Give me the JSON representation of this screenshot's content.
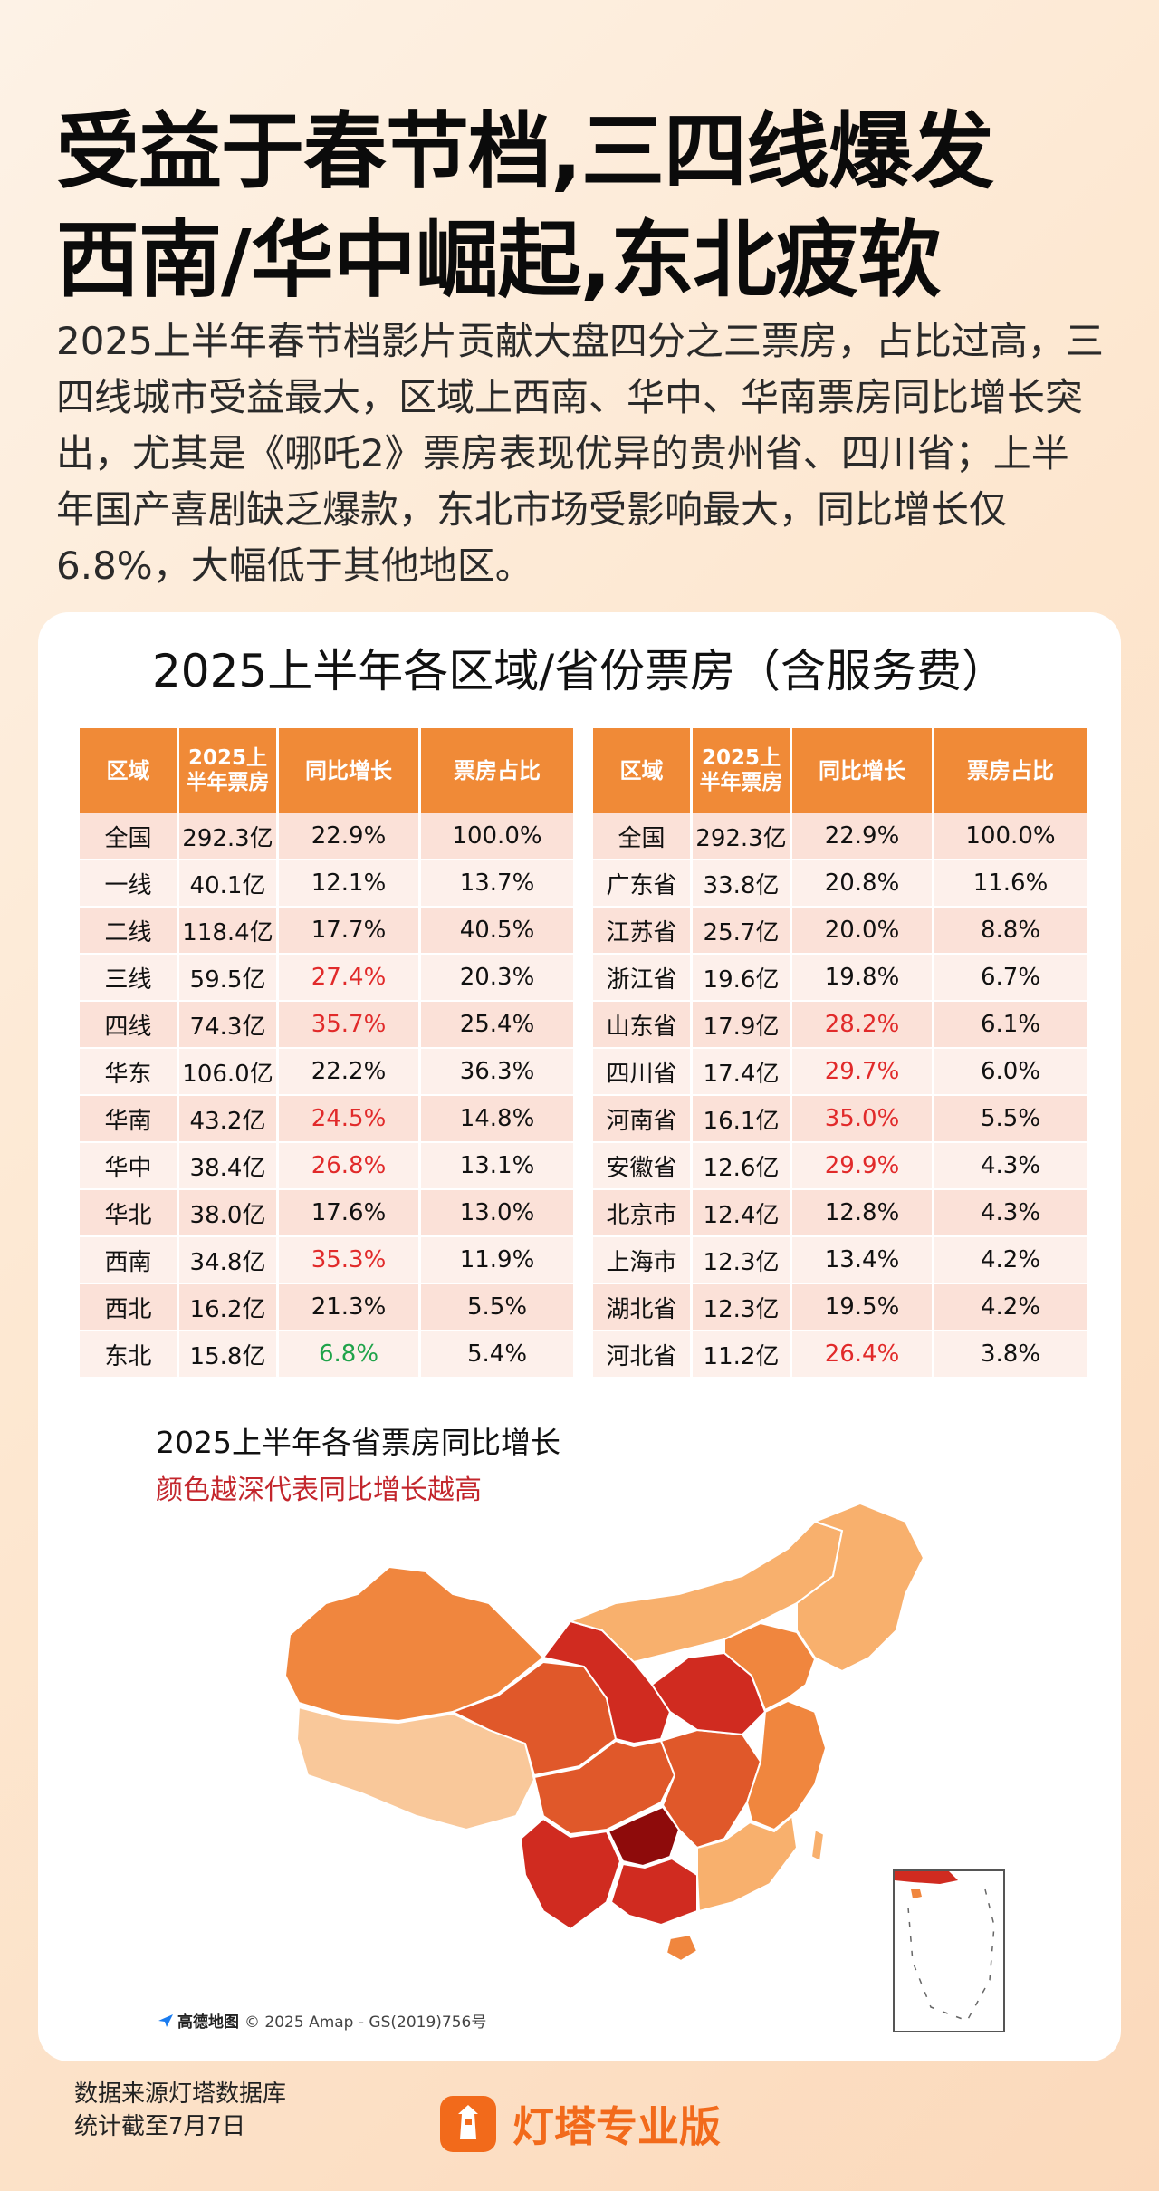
{
  "headline": {
    "line1": "受益于春节档,三四线爆发",
    "line2": "西南/华中崛起,东北疲软"
  },
  "intro": "2025上半年春节档影片贡献大盘四分之三票房，占比过高，三四线城市受益最大，区域上西南、华中、华南票房同比增长突出，尤其是《哪吒2》票房表现优异的贵州省、四川省；上半年国产喜剧缺乏爆款，东北市场受影响最大，同比增长仅6.8%，大幅低于其他地区。",
  "card_title": "2025上半年各区域/省份票房（含服务费）",
  "tables": {
    "headers": [
      "区域",
      "2025上半年票房",
      "同比增长",
      "票房占比"
    ],
    "left": [
      {
        "region": "全国",
        "box": "292.3亿",
        "yoy": "22.9%",
        "share": "100.0%",
        "hl": ""
      },
      {
        "region": "一线",
        "box": "40.1亿",
        "yoy": "12.1%",
        "share": "13.7%",
        "hl": ""
      },
      {
        "region": "二线",
        "box": "118.4亿",
        "yoy": "17.7%",
        "share": "40.5%",
        "hl": ""
      },
      {
        "region": "三线",
        "box": "59.5亿",
        "yoy": "27.4%",
        "share": "20.3%",
        "hl": "red"
      },
      {
        "region": "四线",
        "box": "74.3亿",
        "yoy": "35.7%",
        "share": "25.4%",
        "hl": "red"
      },
      {
        "region": "华东",
        "box": "106.0亿",
        "yoy": "22.2%",
        "share": "36.3%",
        "hl": ""
      },
      {
        "region": "华南",
        "box": "43.2亿",
        "yoy": "24.5%",
        "share": "14.8%",
        "hl": "red"
      },
      {
        "region": "华中",
        "box": "38.4亿",
        "yoy": "26.8%",
        "share": "13.1%",
        "hl": "red"
      },
      {
        "region": "华北",
        "box": "38.0亿",
        "yoy": "17.6%",
        "share": "13.0%",
        "hl": ""
      },
      {
        "region": "西南",
        "box": "34.8亿",
        "yoy": "35.3%",
        "share": "11.9%",
        "hl": "red"
      },
      {
        "region": "西北",
        "box": "16.2亿",
        "yoy": "21.3%",
        "share": "5.5%",
        "hl": ""
      },
      {
        "region": "东北",
        "box": "15.8亿",
        "yoy": "6.8%",
        "share": "5.4%",
        "hl": "green"
      }
    ],
    "right": [
      {
        "region": "全国",
        "box": "292.3亿",
        "yoy": "22.9%",
        "share": "100.0%",
        "hl": ""
      },
      {
        "region": "广东省",
        "box": "33.8亿",
        "yoy": "20.8%",
        "share": "11.6%",
        "hl": ""
      },
      {
        "region": "江苏省",
        "box": "25.7亿",
        "yoy": "20.0%",
        "share": "8.8%",
        "hl": ""
      },
      {
        "region": "浙江省",
        "box": "19.6亿",
        "yoy": "19.8%",
        "share": "6.7%",
        "hl": ""
      },
      {
        "region": "山东省",
        "box": "17.9亿",
        "yoy": "28.2%",
        "share": "6.1%",
        "hl": "red"
      },
      {
        "region": "四川省",
        "box": "17.4亿",
        "yoy": "29.7%",
        "share": "6.0%",
        "hl": "red"
      },
      {
        "region": "河南省",
        "box": "16.1亿",
        "yoy": "35.0%",
        "share": "5.5%",
        "hl": "red"
      },
      {
        "region": "安徽省",
        "box": "12.6亿",
        "yoy": "29.9%",
        "share": "4.3%",
        "hl": "red"
      },
      {
        "region": "北京市",
        "box": "12.4亿",
        "yoy": "12.8%",
        "share": "4.3%",
        "hl": ""
      },
      {
        "region": "上海市",
        "box": "12.3亿",
        "yoy": "13.4%",
        "share": "4.2%",
        "hl": ""
      },
      {
        "region": "湖北省",
        "box": "12.3亿",
        "yoy": "19.5%",
        "share": "4.2%",
        "hl": ""
      },
      {
        "region": "河北省",
        "box": "11.2亿",
        "yoy": "26.4%",
        "share": "3.8%",
        "hl": "red"
      }
    ]
  },
  "map": {
    "title": "2025上半年各省票房同比增长",
    "subtitle": "颜色越深代表同比增长越高",
    "attribution_brand": "高德地图",
    "attribution": "© 2025 Amap - GS(2019)756号",
    "colors": {
      "lightest": "#f9c89a",
      "light": "#f8b06d",
      "mid": "#f0863e",
      "deep": "#e0582a",
      "deeper": "#d02b20",
      "deepest": "#8e0b0b"
    }
  },
  "footer": {
    "source_line1": "数据来源灯塔数据库",
    "source_line2": "统计截至7月7日",
    "brand": "灯塔专业版"
  },
  "colors": {
    "accent": "#f08a37",
    "brand": "#f26a1b",
    "red_text": "#e12a2a",
    "green_text": "#1fa34a"
  }
}
